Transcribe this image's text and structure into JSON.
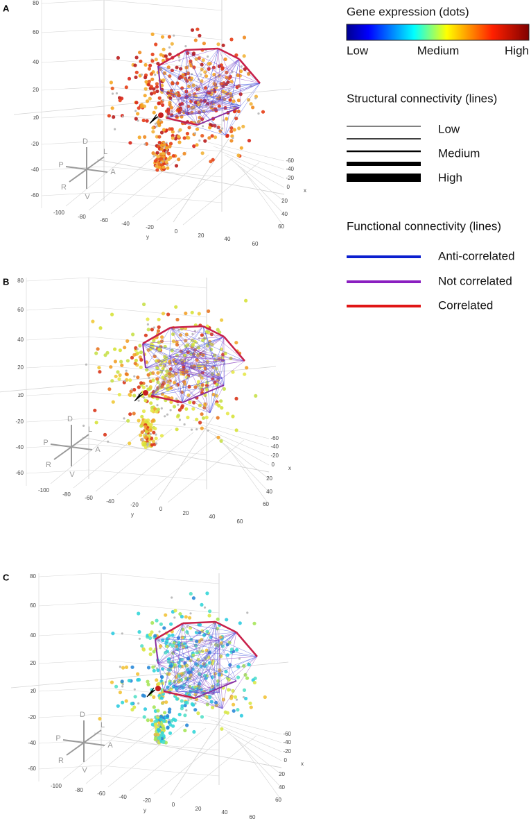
{
  "panels": [
    {
      "label": "A",
      "z_ticks": [
        80,
        60,
        40,
        20,
        0,
        -20,
        -40,
        -60
      ],
      "y_ticks": [
        -100,
        -80,
        -60,
        -40,
        -20,
        0
      ],
      "x_ticks_front": [
        20,
        40,
        60
      ],
      "x_ticks_side": [
        -60,
        -40,
        -20,
        0,
        20,
        40,
        60
      ],
      "axis_labels": {
        "x": "x",
        "y": "y",
        "z": "z"
      },
      "orientation": [
        "D",
        "L",
        "P",
        "A",
        "R",
        "V"
      ]
    },
    {
      "label": "B",
      "z_ticks": [
        80,
        60,
        40,
        20,
        0,
        -20,
        -40,
        -60
      ],
      "y_ticks": [
        -100,
        -80,
        -60,
        -40,
        -20,
        0
      ],
      "x_ticks_front": [
        20,
        40,
        60
      ],
      "x_ticks_side": [
        -60,
        -40,
        -20,
        0,
        20,
        40,
        60
      ],
      "axis_labels": {
        "x": "x",
        "y": "y",
        "z": "z"
      },
      "orientation": [
        "D",
        "L",
        "P",
        "A",
        "R",
        "V"
      ]
    },
    {
      "label": "C",
      "z_ticks": [
        80,
        60,
        40,
        20,
        0,
        -20,
        -40,
        -60
      ],
      "y_ticks": [
        -100,
        -80,
        -60,
        -40,
        -20,
        0
      ],
      "x_ticks_front": [
        20,
        40,
        60
      ],
      "x_ticks_side": [
        -60,
        -40,
        -20,
        0,
        20,
        40,
        60
      ],
      "axis_labels": {
        "x": "x",
        "y": "y",
        "z": "z"
      },
      "orientation": [
        "D",
        "L",
        "P",
        "A",
        "R",
        "V"
      ]
    }
  ],
  "legend": {
    "gene_title": "Gene expression (dots)",
    "gene_scale": [
      "Low",
      "Medium",
      "High"
    ],
    "structural_title": "Structural connectivity (lines)",
    "structural_labels": [
      "Low",
      "Medium",
      "High"
    ],
    "functional_title": "Functional connectivity (lines)",
    "functional_labels": [
      "Anti-correlated",
      "Not correlated",
      "Correlated"
    ]
  }
}
